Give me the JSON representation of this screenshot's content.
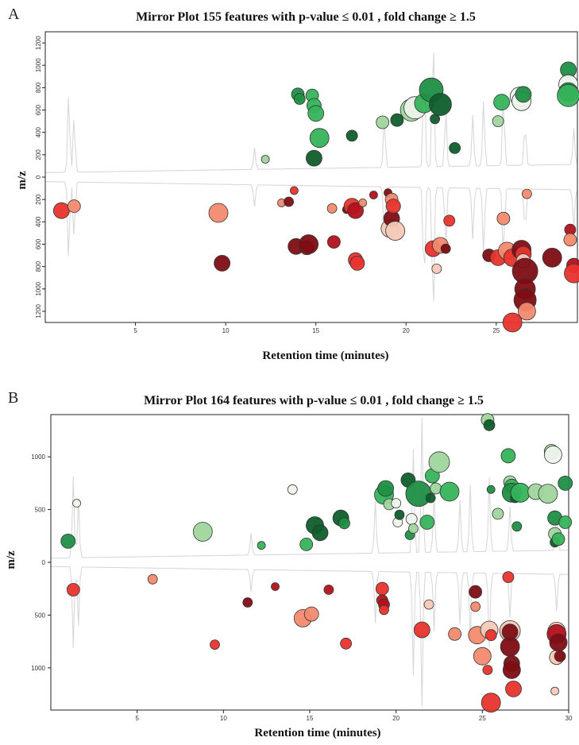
{
  "chart_data": [
    {
      "panel": "A",
      "type": "scatter",
      "title": "Mirror Plot 155 features with p-value ≤ 0.01 , fold change ≥  1.5",
      "xlabel": "Retention time (minutes)",
      "ylabel": "m/z",
      "xlim": [
        0,
        29.5
      ],
      "xticks": [
        5,
        10,
        15,
        20,
        25
      ],
      "ylim": [
        -1300,
        1300
      ],
      "yticks": [
        -1200,
        -1000,
        -800,
        -600,
        -400,
        -200,
        0,
        200,
        400,
        600,
        800,
        1000,
        1200
      ],
      "ytick_labels": [
        "1200",
        "1000",
        "800",
        "600",
        "400",
        "200",
        "0",
        "200",
        "400",
        "600",
        "800",
        "1000",
        "1200"
      ],
      "colors": {
        "up": [
          "#0f5d2c",
          "#1f8f45",
          "#36b35a",
          "#9fd59d",
          "#eef3ec"
        ],
        "down": [
          "#7d0d14",
          "#b3111c",
          "#e8332d",
          "#f28a6e",
          "#f6c9b8"
        ]
      },
      "series": [
        {
          "direction": "up",
          "points": [
            [
              12.2,
              160,
              5,
              3
            ],
            [
              14.0,
              740,
              8,
              1
            ],
            [
              14.1,
              700,
              7,
              1
            ],
            [
              14.8,
              730,
              8,
              2
            ],
            [
              14.9,
              640,
              9,
              2
            ],
            [
              15.0,
              570,
              10,
              2
            ],
            [
              14.9,
              170,
              10,
              0
            ],
            [
              15.2,
              350,
              12,
              2
            ],
            [
              17.0,
              370,
              7,
              0
            ],
            [
              18.7,
              490,
              8,
              3
            ],
            [
              19.5,
              510,
              8,
              0
            ],
            [
              20.3,
              600,
              14,
              3
            ],
            [
              20.5,
              620,
              14,
              4
            ],
            [
              21.0,
              660,
              12,
              2
            ],
            [
              21.4,
              780,
              15,
              1
            ],
            [
              21.6,
              520,
              6,
              0
            ],
            [
              21.9,
              650,
              14,
              0
            ],
            [
              22.7,
              260,
              7,
              0
            ],
            [
              25.1,
              500,
              7,
              3
            ],
            [
              25.3,
              670,
              10,
              2
            ],
            [
              26.3,
              720,
              12,
              4
            ],
            [
              26.4,
              680,
              12,
              4
            ],
            [
              26.5,
              740,
              10,
              1
            ],
            [
              29.0,
              960,
              10,
              1
            ],
            [
              29.0,
              830,
              12,
              4
            ],
            [
              29.0,
              760,
              12,
              1
            ],
            [
              29.0,
              730,
              14,
              2
            ]
          ]
        },
        {
          "direction": "down",
          "points": [
            [
              0.9,
              -300,
              10,
              2
            ],
            [
              1.6,
              -260,
              8,
              3
            ],
            [
              9.6,
              -320,
              12,
              3
            ],
            [
              9.8,
              -770,
              10,
              0
            ],
            [
              13.1,
              -230,
              5,
              3
            ],
            [
              13.5,
              -220,
              6,
              0
            ],
            [
              13.8,
              -120,
              5,
              2
            ],
            [
              13.9,
              -620,
              10,
              0
            ],
            [
              14.5,
              -630,
              9,
              1
            ],
            [
              14.6,
              -600,
              12,
              0
            ],
            [
              15.9,
              -280,
              6,
              3
            ],
            [
              16.0,
              -580,
              8,
              1
            ],
            [
              16.7,
              -290,
              5,
              0
            ],
            [
              17.0,
              -260,
              10,
              2
            ],
            [
              17.2,
              -300,
              10,
              1
            ],
            [
              17.2,
              -740,
              9,
              2
            ],
            [
              17.3,
              -770,
              9,
              2
            ],
            [
              17.6,
              -230,
              5,
              3
            ],
            [
              18.2,
              -160,
              5,
              1
            ],
            [
              19.0,
              -140,
              5,
              0
            ],
            [
              19.1,
              -460,
              11,
              4
            ],
            [
              19.2,
              -200,
              8,
              3
            ],
            [
              19.2,
              -370,
              10,
              0
            ],
            [
              19.3,
              -260,
              9,
              2
            ],
            [
              19.4,
              -480,
              12,
              4
            ],
            [
              21.5,
              -640,
              10,
              2
            ],
            [
              21.7,
              -820,
              6,
              4
            ],
            [
              21.9,
              -610,
              10,
              3
            ],
            [
              22.2,
              -640,
              6,
              0
            ],
            [
              22.4,
              -390,
              7,
              2
            ],
            [
              24.6,
              -700,
              8,
              0
            ],
            [
              25.1,
              -720,
              10,
              2
            ],
            [
              25.4,
              -370,
              8,
              3
            ],
            [
              25.6,
              -660,
              11,
              3
            ],
            [
              25.9,
              -720,
              11,
              2
            ],
            [
              25.9,
              -1300,
              12,
              2
            ],
            [
              26.4,
              -650,
              12,
              0
            ],
            [
              26.5,
              -690,
              10,
              2
            ],
            [
              26.5,
              -750,
              9,
              4
            ],
            [
              26.6,
              -840,
              16,
              0
            ],
            [
              26.6,
              -1000,
              13,
              0
            ],
            [
              26.6,
              -1100,
              14,
              0
            ],
            [
              26.7,
              -1200,
              11,
              3
            ],
            [
              26.7,
              -150,
              6,
              3
            ],
            [
              28.1,
              -720,
              12,
              0
            ],
            [
              29.1,
              -470,
              7,
              1
            ],
            [
              29.1,
              -560,
              8,
              3
            ],
            [
              29.3,
              -790,
              9,
              1
            ],
            [
              29.3,
              -860,
              12,
              2
            ]
          ]
        }
      ]
    },
    {
      "panel": "B",
      "type": "scatter",
      "title": "Mirror Plot 164 features with p-value ≤ 0.01 , fold change ≥  1.5",
      "xlabel": "Retention time (minutes)",
      "ylabel": "m/z",
      "xlim": [
        0,
        30
      ],
      "xticks": [
        5,
        10,
        15,
        20,
        25,
        30
      ],
      "ylim": [
        -1400,
        1400
      ],
      "yticks": [
        -1000,
        -500,
        0,
        500,
        1000
      ],
      "ytick_labels": [
        "1000",
        "500",
        "0",
        "500",
        "1000"
      ],
      "colors": {
        "up": [
          "#0f5d2c",
          "#1f8f45",
          "#36b35a",
          "#9fd59d",
          "#eef3ec"
        ],
        "down": [
          "#7d0d14",
          "#b3111c",
          "#e8332d",
          "#f28a6e",
          "#f6c9b8"
        ]
      },
      "series": [
        {
          "direction": "up",
          "points": [
            [
              1.0,
              200,
              9,
              1
            ],
            [
              1.5,
              560,
              5,
              4
            ],
            [
              8.8,
              290,
              12,
              3
            ],
            [
              12.2,
              160,
              5,
              2
            ],
            [
              14.0,
              690,
              6,
              4
            ],
            [
              14.8,
              170,
              8,
              2
            ],
            [
              15.3,
              350,
              11,
              0
            ],
            [
              15.6,
              280,
              10,
              0
            ],
            [
              16.8,
              420,
              10,
              0
            ],
            [
              17.0,
              370,
              7,
              1
            ],
            [
              19.3,
              640,
              12,
              2
            ],
            [
              19.4,
              700,
              10,
              1
            ],
            [
              19.6,
              550,
              7,
              3
            ],
            [
              20.0,
              560,
              6,
              4
            ],
            [
              20.1,
              380,
              6,
              4
            ],
            [
              20.2,
              450,
              6,
              0
            ],
            [
              20.7,
              780,
              9,
              0
            ],
            [
              20.8,
              260,
              6,
              1
            ],
            [
              20.9,
              410,
              7,
              4
            ],
            [
              21.0,
              320,
              6,
              3
            ],
            [
              21.3,
              650,
              16,
              1
            ],
            [
              21.8,
              380,
              9,
              2
            ],
            [
              22.0,
              610,
              6,
              0
            ],
            [
              22.1,
              820,
              9,
              2
            ],
            [
              22.3,
              700,
              7,
              3
            ],
            [
              22.5,
              950,
              13,
              3
            ],
            [
              23.1,
              670,
              12,
              2
            ],
            [
              25.3,
              1350,
              8,
              3
            ],
            [
              25.4,
              1300,
              7,
              0
            ],
            [
              25.5,
              690,
              5,
              1
            ],
            [
              25.9,
              460,
              7,
              3
            ],
            [
              26.5,
              1010,
              9,
              2
            ],
            [
              26.6,
              760,
              8,
              3
            ],
            [
              26.7,
              720,
              9,
              2
            ],
            [
              26.7,
              660,
              12,
              1
            ],
            [
              26.9,
              610,
              6,
              0
            ],
            [
              27.0,
              340,
              6,
              1
            ],
            [
              27.2,
              660,
              12,
              2
            ],
            [
              28.1,
              670,
              10,
              3
            ],
            [
              28.8,
              650,
              12,
              3
            ],
            [
              29.0,
              1050,
              9,
              3
            ],
            [
              29.1,
              1020,
              11,
              4
            ],
            [
              29.2,
              270,
              8,
              3
            ],
            [
              29.2,
              190,
              6,
              0
            ],
            [
              29.2,
              420,
              9,
              1
            ],
            [
              29.4,
              220,
              8,
              2
            ],
            [
              29.8,
              750,
              9,
              1
            ],
            [
              29.8,
              380,
              8,
              2
            ]
          ]
        },
        {
          "direction": "down",
          "points": [
            [
              1.3,
              -260,
              8,
              2
            ],
            [
              5.9,
              -160,
              6,
              3
            ],
            [
              9.5,
              -780,
              6,
              2
            ],
            [
              11.4,
              -380,
              6,
              0
            ],
            [
              13.0,
              -230,
              5,
              1
            ],
            [
              14.6,
              -530,
              11,
              3
            ],
            [
              15.1,
              -490,
              9,
              3
            ],
            [
              16.1,
              -260,
              6,
              1
            ],
            [
              17.1,
              -770,
              7,
              2
            ],
            [
              19.2,
              -250,
              8,
              2
            ],
            [
              19.2,
              -360,
              7,
              1
            ],
            [
              19.3,
              -400,
              7,
              1
            ],
            [
              19.3,
              -450,
              6,
              2
            ],
            [
              21.5,
              -640,
              10,
              2
            ],
            [
              21.9,
              -400,
              6,
              4
            ],
            [
              23.4,
              -680,
              8,
              3
            ],
            [
              24.6,
              -280,
              8,
              0
            ],
            [
              24.6,
              -420,
              6,
              3
            ],
            [
              24.7,
              -690,
              11,
              3
            ],
            [
              25.0,
              -890,
              11,
              3
            ],
            [
              25.3,
              -1020,
              6,
              2
            ],
            [
              25.4,
              -640,
              11,
              4
            ],
            [
              25.5,
              -690,
              7,
              2
            ],
            [
              25.5,
              -1330,
              12,
              2
            ],
            [
              26.5,
              -140,
              7,
              2
            ],
            [
              26.6,
              -650,
              13,
              4
            ],
            [
              26.6,
              -660,
              10,
              0
            ],
            [
              26.6,
              -800,
              12,
              0
            ],
            [
              26.7,
              -960,
              10,
              0
            ],
            [
              26.7,
              -1020,
              11,
              0
            ],
            [
              26.8,
              -1200,
              10,
              2
            ],
            [
              29.2,
              -1220,
              5,
              4
            ],
            [
              29.3,
              -650,
              11,
              4
            ],
            [
              29.3,
              -680,
              12,
              1
            ],
            [
              29.3,
              -900,
              9,
              4
            ],
            [
              29.4,
              -760,
              11,
              0
            ],
            [
              29.5,
              -890,
              7,
              0
            ]
          ]
        }
      ]
    }
  ]
}
